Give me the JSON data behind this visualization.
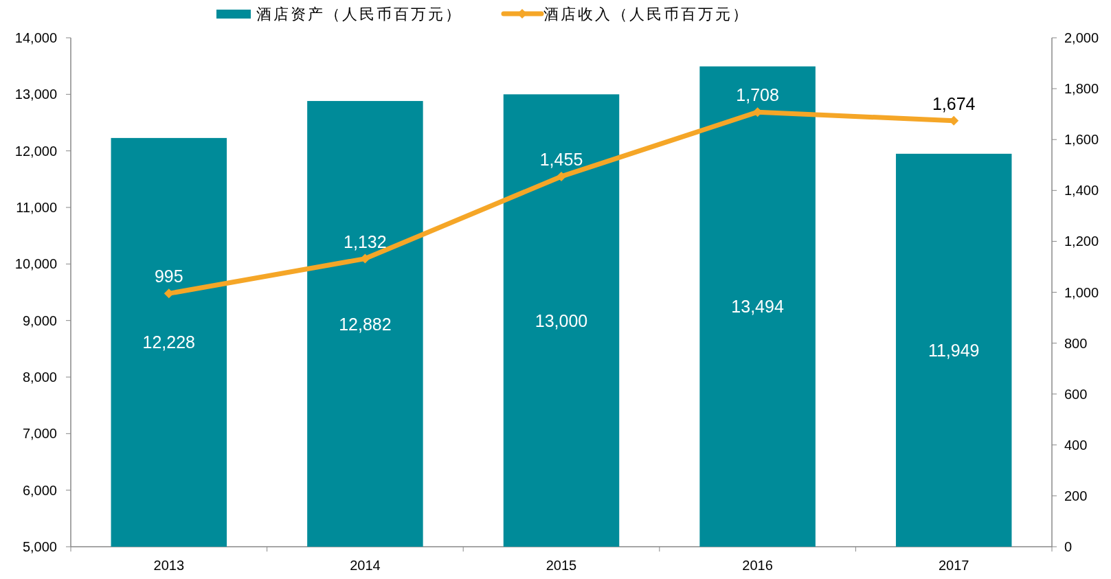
{
  "chart_data": {
    "type": "bar",
    "categories": [
      "2013",
      "2014",
      "2015",
      "2016",
      "2017"
    ],
    "series": [
      {
        "name": "酒店资产（人民币百万元）",
        "color": "#008b99",
        "values": [
          12228,
          12882,
          13000,
          13494,
          11949
        ],
        "value_labels": [
          "12,228",
          "12,882",
          "13,000",
          "13,494",
          "11,949"
        ]
      },
      {
        "name": "酒店收入（人民币百万元）",
        "type": "line",
        "axis": "y2",
        "color": "#f5a627",
        "marker": "diamond",
        "values": [
          995,
          1132,
          1455,
          1708,
          1674
        ],
        "value_labels": [
          "995",
          "1,132",
          "1,455",
          "1,708",
          "1,674"
        ]
      }
    ],
    "ylim": [
      5000,
      14000
    ],
    "yticks": [
      {
        "value": 5000,
        "label": "5,000"
      },
      {
        "value": 6000,
        "label": "6,000"
      },
      {
        "value": 7000,
        "label": "7,000"
      },
      {
        "value": 8000,
        "label": "8,000"
      },
      {
        "value": 9000,
        "label": "9,000"
      },
      {
        "value": 10000,
        "label": "10,000"
      },
      {
        "value": 11000,
        "label": "11,000"
      },
      {
        "value": 12000,
        "label": "12,000"
      },
      {
        "value": 13000,
        "label": "13,000"
      },
      {
        "value": 14000,
        "label": "14,000"
      }
    ],
    "y2lim": [
      0,
      2000
    ],
    "y2ticks": [
      0,
      200,
      400,
      600,
      800,
      {
        "value": 1000,
        "label": "1,000"
      },
      {
        "value": 1200,
        "label": "1,200"
      },
      {
        "value": 1400,
        "label": "1,400"
      },
      {
        "value": 1600,
        "label": "1,600"
      },
      {
        "value": 1800,
        "label": "1,800"
      },
      {
        "value": 2000,
        "label": "2,000"
      }
    ],
    "grid": false,
    "legend": "top"
  }
}
